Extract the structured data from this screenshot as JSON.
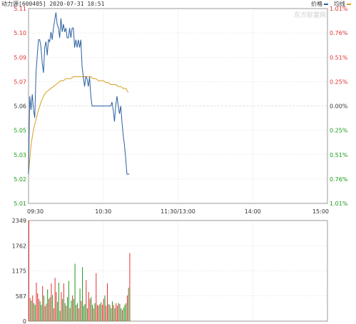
{
  "header": {
    "ticker_text": "动力源[600405] 2020-07-31 10:51",
    "legend": [
      {
        "label": "价格",
        "color": "#2b5fa0"
      },
      {
        "label": "均线",
        "color": "#d4a020"
      }
    ]
  },
  "watermark": {
    "text": "东方财富网"
  },
  "colors": {
    "price": "#2b5fa0",
    "avg": "#d4a020",
    "up": "#e03030",
    "down": "#1a9a1a",
    "axis_text": "#333333"
  },
  "chart_data": [
    {
      "type": "line",
      "title": "",
      "y_left_ticks": [
        "5.11",
        "5.10",
        "5.09",
        "5.07",
        "5.06",
        "5.05",
        "5.03",
        "5.02",
        "5.01"
      ],
      "y_right_ticks": [
        "1.01%",
        "0.76%",
        "0.51%",
        "0.25%",
        "0.00%",
        "0.25%",
        "0.51%",
        "0.76%",
        "1.01%"
      ],
      "x_ticks": [
        "09:30",
        "10:30",
        "11:30/13:00",
        "14:00",
        "15:00"
      ],
      "ylim": [
        5.01,
        5.11
      ],
      "previous_close": 5.06,
      "session_minutes": 240,
      "series": [
        {
          "name": "价格",
          "x_minutes": [
            0,
            1,
            2,
            3,
            4,
            5,
            6,
            7,
            8,
            9,
            10,
            11,
            12,
            13,
            14,
            15,
            16,
            17,
            18,
            19,
            20,
            21,
            22,
            23,
            24,
            25,
            26,
            27,
            28,
            29,
            30,
            31,
            32,
            33,
            34,
            35,
            36,
            37,
            38,
            39,
            40,
            41,
            42,
            43,
            44,
            45,
            46,
            47,
            48,
            49,
            50,
            51,
            52,
            53,
            54,
            55,
            56,
            57,
            58,
            59,
            60,
            61,
            62,
            63,
            64,
            65,
            66,
            67,
            68,
            69,
            70,
            71,
            72,
            73,
            74,
            75,
            76,
            77,
            78,
            79,
            80,
            81
          ],
          "values": [
            5.025,
            5.065,
            5.058,
            5.066,
            5.058,
            5.054,
            5.077,
            5.086,
            5.094,
            5.094,
            5.09,
            5.082,
            5.077,
            5.09,
            5.093,
            5.086,
            5.094,
            5.093,
            5.098,
            5.094,
            5.1,
            5.104,
            5.108,
            5.102,
            5.1,
            5.095,
            5.105,
            5.098,
            5.102,
            5.098,
            5.1,
            5.095,
            5.095,
            5.1,
            5.095,
            5.1,
            5.1,
            5.09,
            5.094,
            5.09,
            5.094,
            5.09,
            5.094,
            5.08,
            5.075,
            5.07,
            5.075,
            5.074,
            5.07,
            5.075,
            5.065,
            5.06,
            5.06,
            5.06,
            5.06,
            5.06,
            5.06,
            5.06,
            5.06,
            5.06,
            5.06,
            5.06,
            5.06,
            5.06,
            5.06,
            5.06,
            5.06,
            5.062,
            5.058,
            5.052,
            5.06,
            5.065,
            5.06,
            5.056,
            5.06,
            5.052,
            5.045,
            5.04,
            5.033,
            5.025,
            5.025,
            5.025
          ]
        },
        {
          "name": "均线",
          "x_minutes": [
            0,
            2,
            4,
            6,
            8,
            10,
            12,
            14,
            16,
            18,
            20,
            22,
            24,
            26,
            28,
            30,
            32,
            34,
            36,
            38,
            40,
            42,
            44,
            46,
            48,
            50,
            52,
            54,
            56,
            58,
            60,
            62,
            64,
            66,
            68,
            70,
            72,
            74,
            76,
            78,
            80
          ],
          "values": [
            5.025,
            5.04,
            5.048,
            5.053,
            5.058,
            5.062,
            5.065,
            5.067,
            5.068,
            5.069,
            5.07,
            5.071,
            5.072,
            5.073,
            5.073,
            5.074,
            5.074,
            5.074,
            5.075,
            5.075,
            5.075,
            5.075,
            5.075,
            5.075,
            5.075,
            5.075,
            5.074,
            5.074,
            5.073,
            5.073,
            5.073,
            5.072,
            5.072,
            5.071,
            5.071,
            5.071,
            5.07,
            5.07,
            5.069,
            5.069,
            5.067
          ]
        }
      ]
    },
    {
      "type": "bar",
      "title": "",
      "y_ticks": [
        "2349",
        "1762",
        "1175",
        "587",
        "0"
      ],
      "ylim": [
        0,
        2349
      ],
      "series": [
        {
          "name": "",
          "x_minutes": [
            0,
            1,
            2,
            3,
            4,
            5,
            6,
            7,
            8,
            9,
            10,
            11,
            12,
            13,
            14,
            15,
            16,
            17,
            18,
            19,
            20,
            21,
            22,
            23,
            24,
            25,
            26,
            27,
            28,
            29,
            30,
            31,
            32,
            33,
            34,
            35,
            36,
            37,
            38,
            39,
            40,
            41,
            42,
            43,
            44,
            45,
            46,
            47,
            48,
            49,
            50,
            51,
            52,
            53,
            54,
            55,
            56,
            57,
            58,
            59,
            60,
            61,
            62,
            63,
            64,
            65,
            66,
            67,
            68,
            69,
            70,
            71,
            72,
            73,
            74,
            75,
            76,
            77,
            78,
            79,
            80,
            81
          ],
          "values": [
            2349,
            540,
            480,
            600,
            420,
            380,
            900,
            650,
            520,
            460,
            380,
            820,
            600,
            350,
            410,
            740,
            520,
            560,
            880,
            610,
            300,
            1010,
            680,
            450,
            900,
            240,
            680,
            520,
            880,
            420,
            360,
            560,
            940,
            300,
            480,
            600,
            520,
            1340,
            380,
            420,
            300,
            760,
            470,
            1260,
            360,
            400,
            960,
            300,
            680,
            520,
            560,
            380,
            300,
            420,
            1120,
            380,
            360,
            400,
            440,
            380,
            520,
            600,
            360,
            880,
            400,
            380,
            300,
            460,
            380,
            300,
            420,
            360,
            420,
            400,
            300,
            260,
            320,
            380,
            420,
            600,
            780,
            1590
          ],
          "direction": [
            "up",
            "up",
            "down",
            "up",
            "down",
            "down",
            "up",
            "up",
            "up",
            "down",
            "down",
            "up",
            "down",
            "up",
            "up",
            "down",
            "up",
            "down",
            "up",
            "down",
            "up",
            "up",
            "up",
            "down",
            "down",
            "down",
            "up",
            "down",
            "up",
            "down",
            "up",
            "down",
            "down",
            "up",
            "down",
            "up",
            "down",
            "down",
            "up",
            "down",
            "up",
            "down",
            "up",
            "down",
            "down",
            "down",
            "up",
            "down",
            "up",
            "up",
            "down",
            "down",
            "up",
            "down",
            "up",
            "up",
            "down",
            "up",
            "down",
            "up",
            "up",
            "down",
            "up",
            "up",
            "down",
            "up",
            "down",
            "down",
            "up",
            "down",
            "up",
            "up",
            "down",
            "up",
            "down",
            "up",
            "down",
            "down",
            "down",
            "up",
            "down",
            "up"
          ]
        }
      ]
    }
  ]
}
